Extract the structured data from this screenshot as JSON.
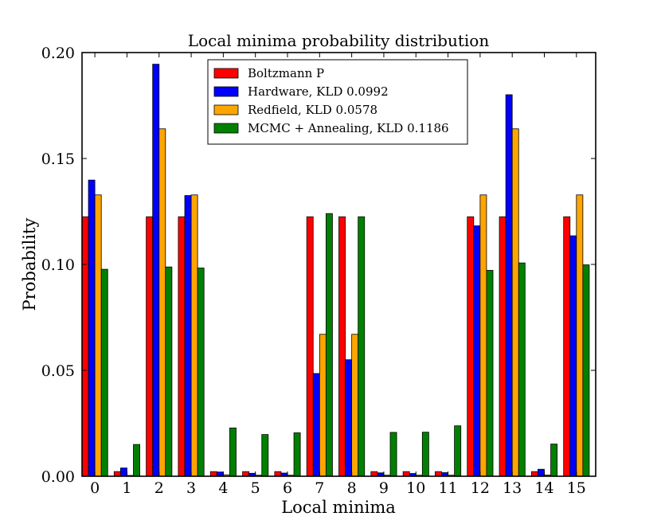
{
  "chart_data": {
    "type": "bar",
    "title": "Local minima probability distribution",
    "xlabel": "Local minima",
    "ylabel": "Probability",
    "ylim": [
      0,
      0.2
    ],
    "yticks": [
      "0.00",
      "0.05",
      "0.10",
      "0.15",
      "0.20"
    ],
    "yticks_values": [
      0,
      0.05,
      0.1,
      0.15,
      0.2
    ],
    "categories": [
      "0",
      "1",
      "2",
      "3",
      "4",
      "5",
      "6",
      "7",
      "8",
      "9",
      "10",
      "11",
      "12",
      "13",
      "14",
      "15"
    ],
    "legend_position": "top-center",
    "series": [
      {
        "name": "Boltzmann P",
        "color": "#ff0000",
        "values": [
          0.1225,
          0.0022,
          0.1225,
          0.1225,
          0.0022,
          0.0022,
          0.0022,
          0.1225,
          0.1225,
          0.0022,
          0.0022,
          0.0022,
          0.1225,
          0.1225,
          0.0022,
          0.1225
        ]
      },
      {
        "name": "Hardware, KLD 0.0992",
        "color": "#0000ff",
        "values": [
          0.1398,
          0.0039,
          0.1945,
          0.1325,
          0.002,
          0.0014,
          0.0015,
          0.0485,
          0.055,
          0.0016,
          0.0013,
          0.0017,
          0.1182,
          0.1801,
          0.0033,
          0.1135
        ]
      },
      {
        "name": "Redfield, KLD 0.0578",
        "color": "#ffa500",
        "values": [
          0.1328,
          0.0004,
          0.164,
          0.1328,
          0.0007,
          0.0005,
          0.0005,
          0.067,
          0.067,
          0.0005,
          0.0005,
          0.0005,
          0.1328,
          0.164,
          0.0006,
          0.1328
        ]
      },
      {
        "name": "MCMC + Annealing, KLD 0.1186",
        "color": "#008000",
        "values": [
          0.0977,
          0.015,
          0.0988,
          0.0983,
          0.0228,
          0.0197,
          0.0205,
          0.124,
          0.1225,
          0.0207,
          0.0208,
          0.0238,
          0.0972,
          0.1007,
          0.0152,
          0.0998
        ]
      }
    ]
  }
}
